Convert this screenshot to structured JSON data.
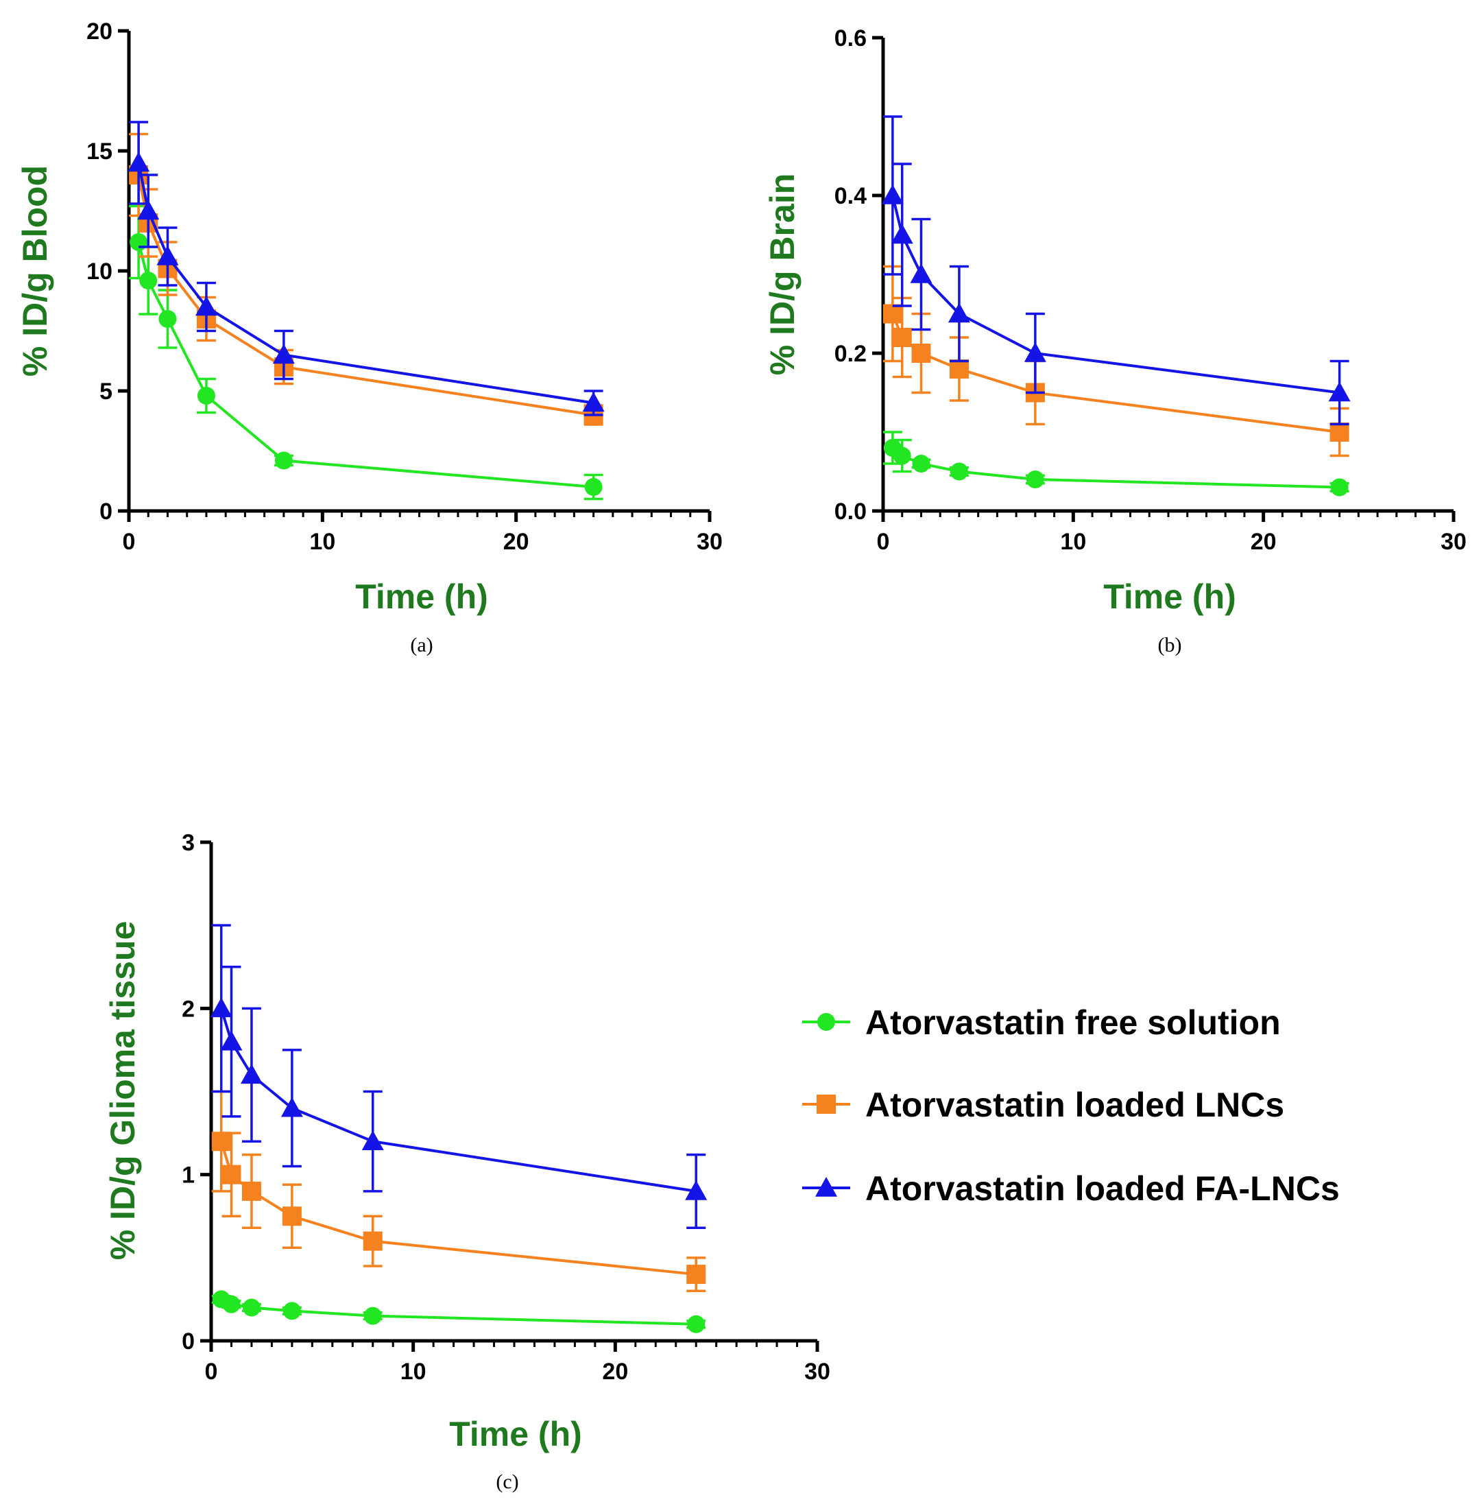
{
  "figure": {
    "colors": {
      "axis": "#000000",
      "axis_title": "#1f7a1f",
      "free_solution": "#22e622",
      "lncs": "#f5821f",
      "fa_lncs": "#1414e6"
    },
    "legend": {
      "items": [
        {
          "label": "Atorvastatin free solution",
          "series": "free_solution",
          "marker": "circle"
        },
        {
          "label": "Atorvastatin loaded LNCs",
          "series": "lncs",
          "marker": "square"
        },
        {
          "label": "Atorvastatin loaded FA-LNCs",
          "series": "fa_lncs",
          "marker": "triangle"
        }
      ]
    }
  },
  "chart_data": [
    {
      "type": "line",
      "panel_label": "(a)",
      "xlabel": "Time (h)",
      "ylabel": "% ID/g Blood",
      "xlim": [
        0,
        30
      ],
      "ylim": [
        0,
        20
      ],
      "xticks": [
        "0",
        "10",
        "20",
        "30"
      ],
      "yticks": [
        "0",
        "5",
        "10",
        "15",
        "20"
      ],
      "x": [
        0.5,
        1,
        2,
        4,
        8,
        24
      ],
      "series": [
        {
          "key": "free_solution",
          "name": "Atorvastatin free solution",
          "marker": "circle",
          "values": [
            11.2,
            9.6,
            8.0,
            4.8,
            2.1,
            1.0
          ],
          "errors": [
            1.5,
            1.4,
            1.2,
            0.7,
            0.2,
            0.5
          ]
        },
        {
          "key": "lncs",
          "name": "Atorvastatin loaded LNCs",
          "marker": "square",
          "values": [
            14.0,
            12.0,
            10.1,
            8.0,
            6.0,
            4.0
          ],
          "errors": [
            1.7,
            1.4,
            1.1,
            0.9,
            0.7,
            0.4
          ]
        },
        {
          "key": "fa_lncs",
          "name": "Atorvastatin loaded FA-LNCs",
          "marker": "triangle",
          "values": [
            14.5,
            12.5,
            10.6,
            8.5,
            6.5,
            4.5
          ],
          "errors": [
            1.7,
            1.5,
            1.2,
            1.0,
            1.0,
            0.5
          ]
        }
      ]
    },
    {
      "type": "line",
      "panel_label": "(b)",
      "xlabel": "Time (h)",
      "ylabel": "% ID/g Brain",
      "xlim": [
        0,
        30
      ],
      "ylim": [
        0,
        0.6
      ],
      "xticks": [
        "0",
        "10",
        "20",
        "30"
      ],
      "yticks": [
        "0.0",
        "0.2",
        "0.4",
        "0.6"
      ],
      "x": [
        0.5,
        1,
        2,
        4,
        8,
        24
      ],
      "series": [
        {
          "key": "free_solution",
          "name": "Atorvastatin free solution",
          "marker": "circle",
          "values": [
            0.08,
            0.07,
            0.06,
            0.05,
            0.04,
            0.03
          ],
          "errors": [
            0.02,
            0.02,
            0.005,
            0.005,
            0.005,
            0.005
          ]
        },
        {
          "key": "lncs",
          "name": "Atorvastatin loaded LNCs",
          "marker": "square",
          "values": [
            0.25,
            0.22,
            0.2,
            0.18,
            0.15,
            0.1
          ],
          "errors": [
            0.06,
            0.05,
            0.05,
            0.04,
            0.04,
            0.03
          ]
        },
        {
          "key": "fa_lncs",
          "name": "Atorvastatin loaded FA-LNCs",
          "marker": "triangle",
          "values": [
            0.4,
            0.35,
            0.3,
            0.25,
            0.2,
            0.15
          ],
          "errors": [
            0.1,
            0.09,
            0.07,
            0.06,
            0.05,
            0.04
          ]
        }
      ]
    },
    {
      "type": "line",
      "panel_label": "(c)",
      "xlabel": "Time (h)",
      "ylabel": "% ID/g Glioma tissue",
      "xlim": [
        0,
        30
      ],
      "ylim": [
        0,
        3
      ],
      "xticks": [
        "0",
        "10",
        "20",
        "30"
      ],
      "yticks": [
        "0",
        "1",
        "2",
        "3"
      ],
      "x": [
        0.5,
        1,
        2,
        4,
        8,
        24
      ],
      "series": [
        {
          "key": "free_solution",
          "name": "Atorvastatin free solution",
          "marker": "circle",
          "values": [
            0.25,
            0.22,
            0.2,
            0.18,
            0.15,
            0.1
          ],
          "errors": [
            0.02,
            0.02,
            0.02,
            0.02,
            0.02,
            0.02
          ]
        },
        {
          "key": "lncs",
          "name": "Atorvastatin loaded LNCs",
          "marker": "square",
          "values": [
            1.2,
            1.0,
            0.9,
            0.75,
            0.6,
            0.4
          ],
          "errors": [
            0.3,
            0.25,
            0.22,
            0.19,
            0.15,
            0.1
          ]
        },
        {
          "key": "fa_lncs",
          "name": "Atorvastatin loaded FA-LNCs",
          "marker": "triangle",
          "values": [
            2.0,
            1.8,
            1.6,
            1.4,
            1.2,
            0.9
          ],
          "errors": [
            0.5,
            0.45,
            0.4,
            0.35,
            0.3,
            0.22
          ]
        }
      ]
    }
  ]
}
